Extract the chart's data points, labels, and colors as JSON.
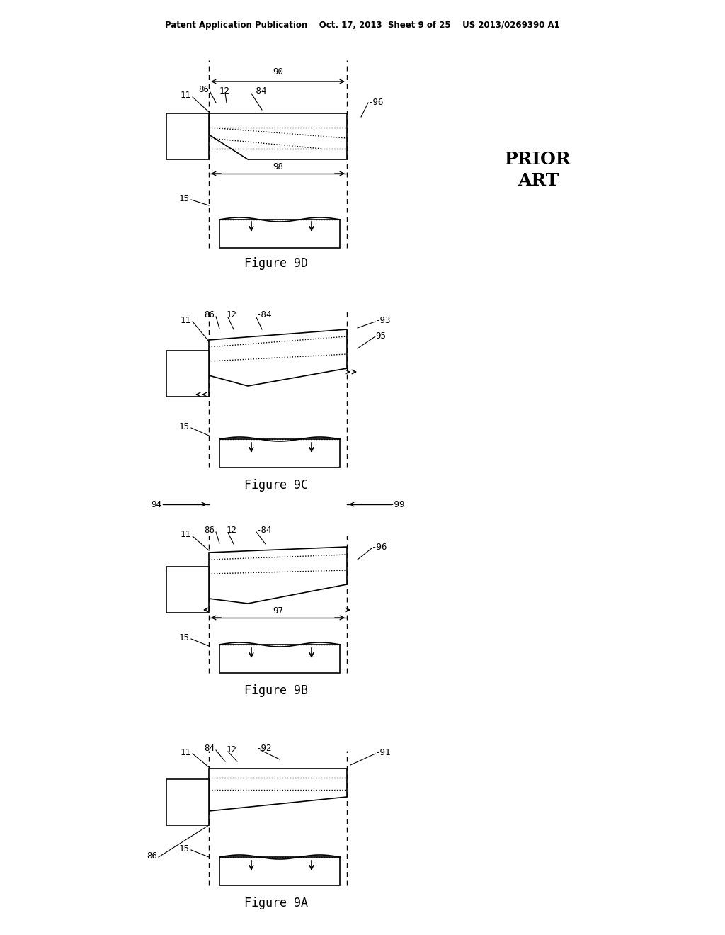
{
  "title_line": "Patent Application Publication    Oct. 17, 2013  Sheet 9 of 25    US 2013/0269390 A1",
  "prior_art_text": "PRIOR\nART",
  "fig_labels": [
    "Figure 9D",
    "Figure 9C",
    "Figure 9B",
    "Figure 9A"
  ],
  "background_color": "#ffffff",
  "line_color": "#000000",
  "dotted_color": "#000000"
}
